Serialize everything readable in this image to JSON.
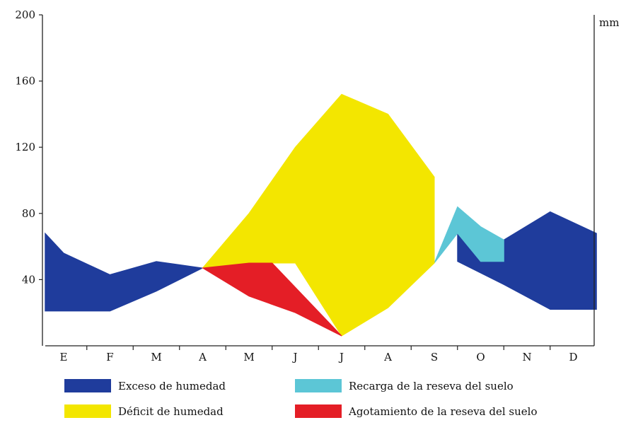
{
  "chart_data": {
    "type": "area",
    "title": "",
    "xlabel": "",
    "ylabel": "",
    "unit_label": "mm",
    "ylim": [
      0,
      200
    ],
    "y_ticks": [
      40,
      80,
      120,
      160,
      200
    ],
    "categories": [
      "E",
      "F",
      "M",
      "A",
      "M",
      "J",
      "J",
      "A",
      "S",
      "O",
      "N",
      "D"
    ],
    "series": [
      {
        "name": "Exceso de humedad",
        "color": "#1f3c9c",
        "regions": [
          {
            "upper": [
              [
                -0.4,
                68
              ],
              [
                0,
                56
              ],
              [
                1,
                43
              ],
              [
                2,
                51
              ],
              [
                3,
                47
              ]
            ],
            "lower": [
              [
                -0.4,
                21
              ],
              [
                1,
                21
              ],
              [
                2,
                33
              ],
              [
                3,
                47
              ]
            ]
          },
          {
            "upper": [
              [
                8.5,
                72
              ],
              [
                9.5,
                64
              ],
              [
                10.5,
                81
              ],
              [
                11.5,
                68
              ]
            ],
            "lower": [
              [
                8.5,
                51
              ],
              [
                9.5,
                37
              ],
              [
                10.5,
                22
              ],
              [
                11.5,
                22
              ]
            ]
          }
        ]
      },
      {
        "name": "Recarga de la reseva del suelo",
        "color": "#5cc6d6",
        "regions": [
          {
            "upper": [
              [
                8,
                50
              ],
              [
                8.5,
                84
              ],
              [
                9,
                72
              ],
              [
                9.5,
                64
              ]
            ],
            "lower": [
              [
                8,
                50
              ],
              [
                8.5,
                68
              ],
              [
                9,
                51
              ],
              [
                9.5,
                51
              ]
            ]
          }
        ]
      },
      {
        "name": "Déficit de humedad",
        "color": "#f3e600",
        "regions": [
          {
            "upper": [
              [
                3,
                47
              ],
              [
                4,
                80
              ],
              [
                5,
                120
              ],
              [
                6,
                152
              ],
              [
                7,
                140
              ],
              [
                8,
                102
              ],
              [
                8,
                50
              ]
            ],
            "lower": [
              [
                3,
                47
              ],
              [
                4,
                50
              ],
              [
                5,
                50
              ],
              [
                6,
                6
              ],
              [
                7,
                23
              ],
              [
                8,
                50
              ]
            ]
          }
        ]
      },
      {
        "name": "Agotamiento de la reseva del suelo",
        "color": "#e41e26",
        "regions": [
          {
            "upper": [
              [
                3,
                47
              ],
              [
                4,
                50
              ],
              [
                4.5,
                50
              ],
              [
                6,
                6
              ]
            ],
            "lower": [
              [
                3,
                47
              ],
              [
                4,
                30
              ],
              [
                5,
                20
              ],
              [
                6,
                6
              ]
            ]
          }
        ]
      }
    ],
    "legend_position": "bottom",
    "grid": false
  },
  "legend": [
    {
      "label": "Exceso de humedad",
      "color": "#1f3c9c"
    },
    {
      "label": "Recarga de la reseva del suelo",
      "color": "#5cc6d6"
    },
    {
      "label": "Déficit de humedad",
      "color": "#f3e600"
    },
    {
      "label": "Agotamiento de la reseva del suelo",
      "color": "#e41e26"
    }
  ]
}
